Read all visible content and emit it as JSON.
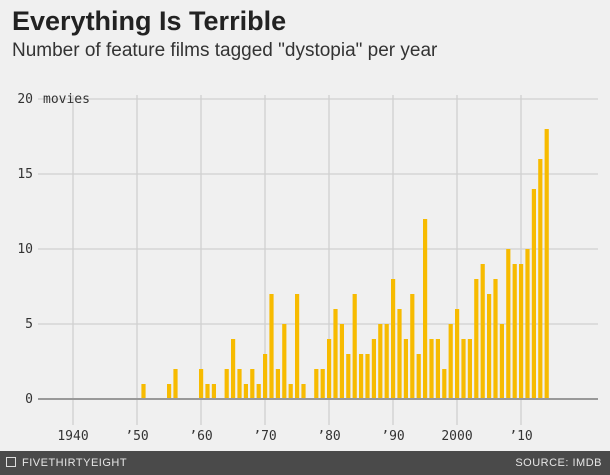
{
  "chart_data": {
    "type": "bar",
    "title": "Everything Is Terrible",
    "subtitle": "Number of feature films tagged \"dystopia\" per year",
    "ylabel": "movies",
    "ylim": [
      0,
      20
    ],
    "yticks": [
      0,
      5,
      10,
      15,
      20
    ],
    "ytick_labels": [
      "0",
      "5",
      "10",
      "15",
      "20"
    ],
    "xlim": [
      1940,
      2014
    ],
    "xticks": [
      1940,
      1950,
      1960,
      1970,
      1980,
      1990,
      2000,
      2010
    ],
    "xtick_labels": [
      "1940",
      "’50",
      "’60",
      "’70",
      "’80",
      "’90",
      "2000",
      "’10"
    ],
    "grid": true,
    "color": "#f7bb00",
    "x": [
      1951,
      1955,
      1956,
      1960,
      1961,
      1962,
      1964,
      1965,
      1966,
      1967,
      1968,
      1969,
      1970,
      1971,
      1972,
      1973,
      1974,
      1975,
      1976,
      1978,
      1979,
      1980,
      1981,
      1982,
      1983,
      1984,
      1985,
      1986,
      1987,
      1988,
      1989,
      1990,
      1991,
      1992,
      1993,
      1994,
      1995,
      1996,
      1997,
      1998,
      1999,
      2000,
      2001,
      2002,
      2003,
      2004,
      2005,
      2006,
      2007,
      2008,
      2009,
      2010,
      2011,
      2012,
      2013,
      2014
    ],
    "values": [
      1,
      1,
      2,
      2,
      1,
      1,
      2,
      4,
      2,
      1,
      2,
      1,
      3,
      7,
      2,
      5,
      1,
      7,
      1,
      2,
      2,
      4,
      6,
      5,
      3,
      7,
      3,
      3,
      4,
      5,
      5,
      8,
      6,
      4,
      7,
      3,
      12,
      4,
      4,
      2,
      5,
      6,
      4,
      4,
      8,
      9,
      7,
      8,
      5,
      10,
      9,
      9,
      10,
      14,
      16,
      18
    ]
  },
  "footer": {
    "brand": "FIVETHIRTYEIGHT",
    "source": "SOURCE: IMDB"
  }
}
